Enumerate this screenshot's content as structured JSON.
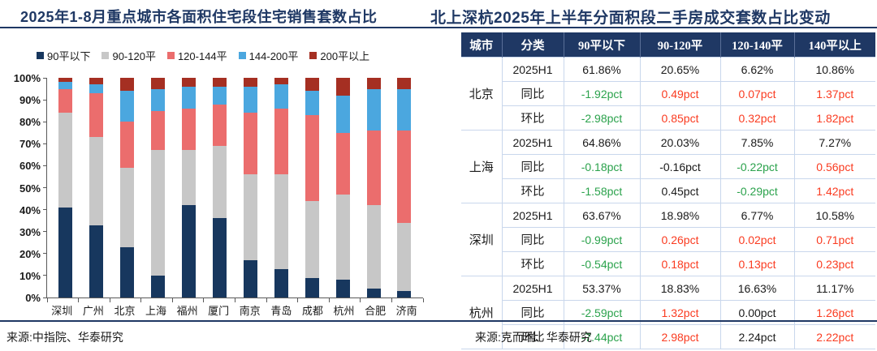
{
  "titles": {
    "left": "2025年1-8月重点城市各面积住宅段住宅销售套数占比",
    "right": "北上深杭2025年上半年分面积段二手房成交套数占比变动"
  },
  "sources": {
    "left": "来源:中指院、华泰研究",
    "right": "来源:克而瑞、华泰研究"
  },
  "colors": {
    "title_navy": "#1F3864",
    "axis_gray": "#595959",
    "table_border": "#C9D7EC",
    "value_green": "#2BA24C",
    "value_red": "#FA3B20"
  },
  "chart_data": [
    {
      "type": "bar",
      "stacked": true,
      "title": "2025年1-8月重点城市各面积住宅段住宅销售套数占比",
      "categories": [
        "深圳",
        "广州",
        "北京",
        "上海",
        "福州",
        "厦门",
        "南京",
        "青岛",
        "成都",
        "杭州",
        "合肥",
        "济南"
      ],
      "series": [
        {
          "name": "90平以下",
          "color": "#17375E",
          "values": [
            41,
            33,
            23,
            10,
            42,
            36,
            17,
            13,
            9,
            8,
            4,
            3
          ]
        },
        {
          "name": "90-120平",
          "color": "#C7C7C7",
          "values": [
            43,
            40,
            36,
            57,
            25,
            33,
            39,
            43,
            35,
            39,
            38,
            31
          ]
        },
        {
          "name": "120-144平",
          "color": "#EB6D6D",
          "values": [
            11,
            20,
            21,
            18,
            19,
            19,
            28,
            30,
            39,
            28,
            34,
            42
          ]
        },
        {
          "name": "144-200平",
          "color": "#4BA7DF",
          "values": [
            3,
            4,
            14,
            10,
            10,
            8,
            12,
            11,
            11,
            17,
            19,
            19
          ]
        },
        {
          "name": "200平以上",
          "color": "#A52F22",
          "values": [
            2,
            3,
            6,
            5,
            4,
            4,
            4,
            3,
            6,
            8,
            5,
            5
          ]
        }
      ],
      "ylim": [
        0,
        100
      ],
      "y_ticks": [
        "100%",
        "90%",
        "80%",
        "70%",
        "60%",
        "50%",
        "40%",
        "30%",
        "20%",
        "10%",
        "0%"
      ],
      "grid": false,
      "legend_position": "top",
      "unit": "percent of units sold"
    },
    {
      "type": "table",
      "title": "北上深杭2025年上半年分面积段二手房成交套数占比变动",
      "headers": [
        "城市",
        "分类",
        "90平以下",
        "90-120平",
        "120-140平",
        "140平以上"
      ],
      "groups": [
        {
          "city": "北京",
          "rows": [
            {
              "label": "2025H1",
              "cells": [
                [
                  "61.86%",
                  "k"
                ],
                [
                  "20.65%",
                  "k"
                ],
                [
                  "6.62%",
                  "k"
                ],
                [
                  "10.86%",
                  "k"
                ]
              ]
            },
            {
              "label": "同比",
              "cells": [
                [
                  "-1.92pct",
                  "g"
                ],
                [
                  "0.49pct",
                  "r"
                ],
                [
                  "0.07pct",
                  "r"
                ],
                [
                  "1.37pct",
                  "r"
                ]
              ]
            },
            {
              "label": "环比",
              "cells": [
                [
                  "-2.98pct",
                  "g"
                ],
                [
                  "0.85pct",
                  "r"
                ],
                [
                  "0.32pct",
                  "r"
                ],
                [
                  "1.82pct",
                  "r"
                ]
              ]
            }
          ]
        },
        {
          "city": "上海",
          "rows": [
            {
              "label": "2025H1",
              "cells": [
                [
                  "64.86%",
                  "k"
                ],
                [
                  "20.03%",
                  "k"
                ],
                [
                  "7.85%",
                  "k"
                ],
                [
                  "7.27%",
                  "k"
                ]
              ]
            },
            {
              "label": "同比",
              "cells": [
                [
                  "-0.18pct",
                  "g"
                ],
                [
                  "-0.16pct",
                  "k"
                ],
                [
                  "-0.22pct",
                  "g"
                ],
                [
                  "0.56pct",
                  "r"
                ]
              ]
            },
            {
              "label": "环比",
              "cells": [
                [
                  "-1.58pct",
                  "g"
                ],
                [
                  "0.45pct",
                  "k"
                ],
                [
                  "-0.29pct",
                  "g"
                ],
                [
                  "1.42pct",
                  "r"
                ]
              ]
            }
          ]
        },
        {
          "city": "深圳",
          "rows": [
            {
              "label": "2025H1",
              "cells": [
                [
                  "63.67%",
                  "k"
                ],
                [
                  "18.98%",
                  "k"
                ],
                [
                  "6.77%",
                  "k"
                ],
                [
                  "10.58%",
                  "k"
                ]
              ]
            },
            {
              "label": "同比",
              "cells": [
                [
                  "-0.99pct",
                  "g"
                ],
                [
                  "0.26pct",
                  "r"
                ],
                [
                  "0.02pct",
                  "r"
                ],
                [
                  "0.71pct",
                  "r"
                ]
              ]
            },
            {
              "label": "环比",
              "cells": [
                [
                  "-0.54pct",
                  "g"
                ],
                [
                  "0.18pct",
                  "r"
                ],
                [
                  "0.13pct",
                  "r"
                ],
                [
                  "0.23pct",
                  "r"
                ]
              ]
            }
          ]
        },
        {
          "city": "杭州",
          "rows": [
            {
              "label": "2025H1",
              "cells": [
                [
                  "53.37%",
                  "k"
                ],
                [
                  "18.83%",
                  "k"
                ],
                [
                  "16.63%",
                  "k"
                ],
                [
                  "11.17%",
                  "k"
                ]
              ]
            },
            {
              "label": "同比",
              "cells": [
                [
                  "-2.59pct",
                  "g"
                ],
                [
                  "1.32pct",
                  "r"
                ],
                [
                  "0.00pct",
                  "k"
                ],
                [
                  "1.26pct",
                  "r"
                ]
              ]
            },
            {
              "label": "环比",
              "cells": [
                [
                  "-7.44pct",
                  "g"
                ],
                [
                  "2.98pct",
                  "r"
                ],
                [
                  "2.24pct",
                  "k"
                ],
                [
                  "2.22pct",
                  "r"
                ]
              ]
            }
          ]
        }
      ]
    }
  ]
}
